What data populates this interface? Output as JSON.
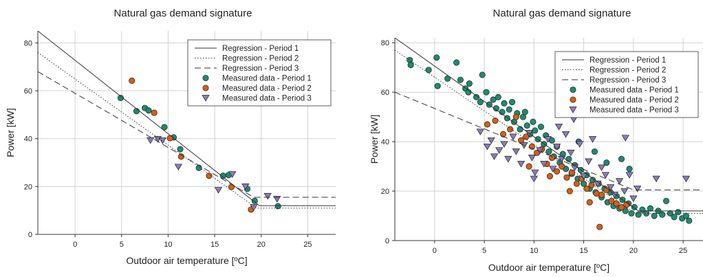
{
  "chart_data": [
    {
      "type": "scatter",
      "title": "Natural gas demand signature",
      "xlabel": "Outdoor air temperature [ºC]",
      "ylabel": "Power [kW]",
      "xlim": [
        -4,
        28
      ],
      "ylim": [
        0,
        85
      ],
      "xticks": [
        "0",
        "5",
        "10",
        "15",
        "20",
        "25"
      ],
      "yticks": [
        "0",
        "20",
        "40",
        "60",
        "80"
      ],
      "grid": true,
      "legend_position": "top-right",
      "legend": [
        "Regression - Period 1",
        "Regression - Period 2",
        "Regression - Period 3",
        "Measured data - Period 1",
        "Measured data - Period 2",
        "Measured data - Period 3"
      ],
      "colors": {
        "period1": "#1f8a70",
        "period2": "#d35f14",
        "period3": "#8a7bb8",
        "line": "#333333"
      },
      "regression": [
        {
          "label": "Regression - Period 1",
          "style": "solid",
          "points": [
            [
              -4,
              85
            ],
            [
              19.8,
              12
            ],
            [
              28,
              12
            ]
          ]
        },
        {
          "label": "Regression - Period 2",
          "style": "dotted",
          "points": [
            [
              -4,
              76
            ],
            [
              19.5,
              11
            ],
            [
              28,
              11
            ]
          ]
        },
        {
          "label": "Regression - Period 3",
          "style": "dashed",
          "points": [
            [
              -4,
              68
            ],
            [
              19.2,
              15.5
            ],
            [
              28,
              15.5
            ]
          ]
        }
      ],
      "series": [
        {
          "name": "Measured data - Period 1",
          "marker": "circle",
          "points": [
            [
              4.9,
              57
            ],
            [
              6.6,
              51.5
            ],
            [
              7.5,
              52.8
            ],
            [
              7.9,
              51.8
            ],
            [
              9.6,
              44.8
            ],
            [
              10.6,
              40.5
            ],
            [
              11.3,
              35.6
            ],
            [
              13.3,
              27.8
            ],
            [
              15.9,
              24.5
            ],
            [
              16.5,
              24.8
            ],
            [
              18.5,
              19
            ],
            [
              19.3,
              14
            ],
            [
              21.8,
              11.8
            ]
          ]
        },
        {
          "name": "Measured data - Period 2",
          "marker": "circle",
          "points": [
            [
              6.1,
              64.2
            ],
            [
              8.5,
              50.8
            ],
            [
              10.2,
              40.2
            ],
            [
              11.4,
              32.5
            ],
            [
              14.4,
              24.5
            ],
            [
              16.8,
              19.8
            ],
            [
              18.9,
              10.4
            ]
          ]
        },
        {
          "name": "Measured data - Period 3",
          "marker": "triangle",
          "points": [
            [
              8.1,
              39.3
            ],
            [
              8.9,
              39.8
            ],
            [
              9.4,
              39.2
            ],
            [
              11.1,
              28.2
            ],
            [
              15.4,
              18.5
            ],
            [
              16.9,
              25.1
            ],
            [
              18.3,
              20
            ],
            [
              19.2,
              11.3
            ],
            [
              20.7,
              16
            ],
            [
              21.7,
              14.8
            ]
          ]
        }
      ]
    },
    {
      "type": "scatter",
      "title": "Natural gas demand signature",
      "xlabel": "Outdoor air temperature [ºC]",
      "ylabel": "Power [kW]",
      "xlim": [
        -4,
        27
      ],
      "ylim": [
        0,
        82
      ],
      "xticks": [
        "0",
        "5",
        "10",
        "15",
        "20",
        "25"
      ],
      "yticks": [
        "0",
        "20",
        "40",
        "60",
        "80"
      ],
      "grid": true,
      "legend_position": "top-right",
      "legend": [
        "Regression - Period 1",
        "Regression - Period 2",
        "Regression - Period 3",
        "Measured data - Period 1",
        "Measured data - Period 2",
        "Measured data - Period 3"
      ],
      "colors": {
        "period1": "#1f8a70",
        "period2": "#d35f14",
        "period3": "#8a7bb8",
        "line": "#333333"
      },
      "regression": [
        {
          "label": "Regression - Period 1",
          "style": "solid",
          "points": [
            [
              -4,
              82
            ],
            [
              20.5,
              12
            ],
            [
              27,
              12
            ]
          ]
        },
        {
          "label": "Regression - Period 2",
          "style": "dotted",
          "points": [
            [
              -4,
              77
            ],
            [
              20.2,
              11
            ],
            [
              27,
              11
            ]
          ]
        },
        {
          "label": "Regression - Period 3",
          "style": "dashed",
          "points": [
            [
              -4,
              60
            ],
            [
              20,
              20.5
            ],
            [
              27,
              20.5
            ]
          ]
        }
      ],
      "series": [
        {
          "name": "Measured data - Period 1",
          "marker": "circle",
          "points": [
            [
              -2.5,
              73
            ],
            [
              -2.4,
              71
            ],
            [
              -0.6,
              69
            ],
            [
              0.2,
              74
            ],
            [
              0.3,
              62.5
            ],
            [
              1.3,
              65.5
            ],
            [
              2.2,
              72
            ],
            [
              2.6,
              65
            ],
            [
              3.1,
              61.5
            ],
            [
              3.4,
              60
            ],
            [
              3.5,
              63.5
            ],
            [
              4.2,
              58
            ],
            [
              4.6,
              56
            ],
            [
              4.8,
              67
            ],
            [
              5.2,
              60
            ],
            [
              5.5,
              55
            ],
            [
              5.9,
              57
            ],
            [
              6.2,
              53.5
            ],
            [
              6.4,
              58
            ],
            [
              6.8,
              52
            ],
            [
              7.0,
              55.5
            ],
            [
              7.3,
              49.5
            ],
            [
              7.5,
              53
            ],
            [
              7.8,
              56
            ],
            [
              8.0,
              48
            ],
            [
              8.3,
              51.5
            ],
            [
              8.6,
              45
            ],
            [
              8.9,
              50
            ],
            [
              9.1,
              52
            ],
            [
              9.3,
              46.5
            ],
            [
              9.6,
              43
            ],
            [
              9.9,
              48
            ],
            [
              10.1,
              44.5
            ],
            [
              10.4,
              41
            ],
            [
              10.7,
              46
            ],
            [
              11.0,
              39
            ],
            [
              11.2,
              42.5
            ],
            [
              11.5,
              36
            ],
            [
              11.8,
              40.5
            ],
            [
              12.0,
              34
            ],
            [
              12.3,
              38
            ],
            [
              12.6,
              31.5
            ],
            [
              12.9,
              35
            ],
            [
              13.2,
              29
            ],
            [
              13.5,
              33
            ],
            [
              13.8,
              27
            ],
            [
              14.1,
              30.5
            ],
            [
              14.4,
              25
            ],
            [
              14.7,
              28.5
            ],
            [
              15.0,
              23
            ],
            [
              15.3,
              26.5
            ],
            [
              15.6,
              21
            ],
            [
              15.9,
              24.5
            ],
            [
              16.2,
              19.5
            ],
            [
              16.5,
              23
            ],
            [
              16.8,
              17.5
            ],
            [
              17.1,
              21
            ],
            [
              17.4,
              15.5
            ],
            [
              17.7,
              19.5
            ],
            [
              18.0,
              14
            ],
            [
              18.3,
              18
            ],
            [
              18.6,
              13
            ],
            [
              18.9,
              16.5
            ],
            [
              19.2,
              12
            ],
            [
              19.5,
              15
            ],
            [
              19.8,
              11
            ],
            [
              20.1,
              13.5
            ],
            [
              20.5,
              10.5
            ],
            [
              20.9,
              12.5
            ],
            [
              21.3,
              11
            ],
            [
              21.7,
              13
            ],
            [
              22.1,
              10
            ],
            [
              22.5,
              12
            ],
            [
              22.9,
              10.5
            ],
            [
              23.3,
              16
            ],
            [
              23.7,
              11
            ],
            [
              24.1,
              9.5
            ],
            [
              24.5,
              11.5
            ],
            [
              24.9,
              9
            ],
            [
              25.3,
              10
            ],
            [
              25.6,
              8
            ],
            [
              14.5,
              40
            ],
            [
              16.1,
              36
            ],
            [
              17.3,
              31.5
            ],
            [
              18.8,
              33
            ],
            [
              19.6,
              29
            ]
          ]
        },
        {
          "name": "Measured data - Period 2",
          "marker": "circle",
          "points": [
            [
              5.3,
              47
            ],
            [
              6.1,
              48.5
            ],
            [
              6.9,
              43
            ],
            [
              7.6,
              45
            ],
            [
              8.2,
              50
            ],
            [
              8.7,
              40.5
            ],
            [
              9.2,
              42
            ],
            [
              9.8,
              38
            ],
            [
              10.3,
              35.5
            ],
            [
              10.8,
              37
            ],
            [
              11.3,
              31
            ],
            [
              11.8,
              33.5
            ],
            [
              12.3,
              28
            ],
            [
              12.8,
              30
            ],
            [
              13.3,
              25.5
            ],
            [
              13.8,
              27.5
            ],
            [
              14.3,
              23
            ],
            [
              14.8,
              25
            ],
            [
              15.3,
              21
            ],
            [
              15.8,
              22.5
            ],
            [
              16.3,
              19
            ],
            [
              16.6,
              5.5
            ],
            [
              16.8,
              18.5
            ],
            [
              17.3,
              20.5
            ],
            [
              17.8,
              16
            ],
            [
              18.3,
              15
            ],
            [
              18.8,
              13.5
            ],
            [
              19.3,
              14.5
            ],
            [
              9.5,
              30
            ],
            [
              11.6,
              26
            ],
            [
              13.6,
              20
            ],
            [
              15.6,
              15.5
            ]
          ]
        },
        {
          "name": "Measured data - Period 3",
          "marker": "triangle",
          "points": [
            [
              4.6,
              44
            ],
            [
              5.3,
              38
            ],
            [
              5.7,
              40.5
            ],
            [
              6.0,
              34
            ],
            [
              6.5,
              36.5
            ],
            [
              7.0,
              39
            ],
            [
              7.4,
              33
            ],
            [
              7.9,
              42
            ],
            [
              8.2,
              36
            ],
            [
              8.7,
              31
            ],
            [
              9.0,
              38.5
            ],
            [
              9.5,
              43.5
            ],
            [
              9.8,
              33.5
            ],
            [
              10.1,
              27.5
            ],
            [
              10.6,
              36.5
            ],
            [
              11.0,
              31
            ],
            [
              11.4,
              41
            ],
            [
              11.9,
              29
            ],
            [
              12.3,
              38
            ],
            [
              12.8,
              33
            ],
            [
              13.2,
              43
            ],
            [
              13.7,
              35.5
            ],
            [
              14.1,
              29.5
            ],
            [
              14.6,
              39
            ],
            [
              15.0,
              26
            ],
            [
              15.5,
              32
            ],
            [
              15.9,
              41
            ],
            [
              16.4,
              23
            ],
            [
              16.8,
              29.5
            ],
            [
              17.2,
              26.5
            ],
            [
              17.7,
              21.5
            ],
            [
              18.1,
              18.5
            ],
            [
              18.6,
              24
            ],
            [
              19.1,
              20
            ],
            [
              19.6,
              26.5
            ],
            [
              20.0,
              17
            ],
            [
              20.4,
              21
            ],
            [
              22.3,
              25
            ],
            [
              25.3,
              25
            ],
            [
              19.2,
              41.5
            ],
            [
              10.0,
              25
            ],
            [
              12.5,
              46
            ],
            [
              14.0,
              49
            ]
          ]
        }
      ]
    }
  ]
}
